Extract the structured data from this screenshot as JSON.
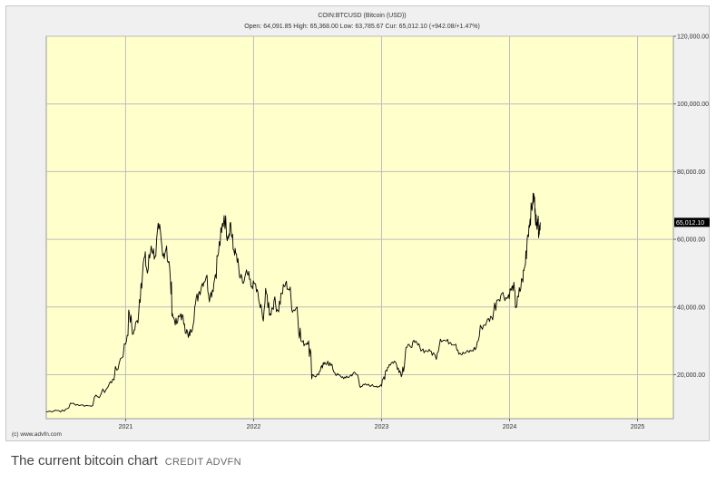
{
  "chart_data": {
    "type": "line",
    "title": "COIN:BTCUSD (Bitcoin (USD))",
    "subtitle": "Open: 64,091.85 High: 65,368.00 Low: 63,785.67 Cur: 65,012.10 (+942.08/+1.47%)",
    "x_tick_labels": [
      "2021",
      "2022",
      "2023",
      "2024",
      "2025"
    ],
    "x_ticks": [
      2021.0,
      2022.0,
      2023.0,
      2024.0,
      2025.0
    ],
    "y_tick_labels": [
      "20,000.00",
      "40,000.00",
      "60,000.00",
      "80,000.00",
      "100,000.00",
      "120,000.00"
    ],
    "y_ticks": [
      20000,
      40000,
      60000,
      80000,
      100000,
      120000
    ],
    "xlim": [
      2020.38,
      2025.28
    ],
    "ylim": [
      7000,
      120000
    ],
    "grid": true,
    "current_value_label": "65,012.10",
    "current_value": 65012.1,
    "watermark": "(c) www.advfn.com",
    "colors": {
      "plot_bg": "#ffffcc",
      "line": "#000000",
      "grid": "#bdbdbd",
      "frame_bg": "#f0f0f0"
    },
    "series": [
      {
        "points": [
          [
            2020.38,
            9000
          ],
          [
            2020.45,
            9500
          ],
          [
            2020.52,
            9200
          ],
          [
            2020.58,
            11500
          ],
          [
            2020.65,
            11000
          ],
          [
            2020.72,
            10800
          ],
          [
            2020.78,
            13500
          ],
          [
            2020.85,
            15800
          ],
          [
            2020.9,
            18700
          ],
          [
            2020.95,
            23500
          ],
          [
            2021.0,
            29000
          ],
          [
            2021.03,
            38000
          ],
          [
            2021.06,
            32000
          ],
          [
            2021.09,
            36000
          ],
          [
            2021.12,
            47000
          ],
          [
            2021.15,
            55000
          ],
          [
            2021.17,
            50000
          ],
          [
            2021.2,
            58000
          ],
          [
            2021.23,
            55000
          ],
          [
            2021.26,
            63000
          ],
          [
            2021.29,
            55000
          ],
          [
            2021.32,
            58000
          ],
          [
            2021.35,
            48000
          ],
          [
            2021.37,
            37000
          ],
          [
            2021.4,
            35000
          ],
          [
            2021.43,
            38000
          ],
          [
            2021.46,
            35000
          ],
          [
            2021.49,
            31000
          ],
          [
            2021.51,
            33000
          ],
          [
            2021.54,
            40000
          ],
          [
            2021.57,
            44000
          ],
          [
            2021.6,
            47000
          ],
          [
            2021.63,
            49000
          ],
          [
            2021.66,
            43000
          ],
          [
            2021.69,
            47000
          ],
          [
            2021.72,
            55000
          ],
          [
            2021.75,
            62000
          ],
          [
            2021.77,
            67000
          ],
          [
            2021.8,
            61000
          ],
          [
            2021.82,
            65000
          ],
          [
            2021.84,
            57000
          ],
          [
            2021.86,
            56000
          ],
          [
            2021.89,
            49000
          ],
          [
            2021.92,
            47000
          ],
          [
            2021.95,
            50000
          ],
          [
            2021.98,
            46000
          ],
          [
            2022.01,
            47000
          ],
          [
            2022.04,
            42000
          ],
          [
            2022.07,
            37000
          ],
          [
            2022.1,
            44000
          ],
          [
            2022.13,
            38000
          ],
          [
            2022.16,
            42000
          ],
          [
            2022.19,
            39000
          ],
          [
            2022.22,
            44000
          ],
          [
            2022.25,
            47000
          ],
          [
            2022.28,
            45000
          ],
          [
            2022.31,
            39000
          ],
          [
            2022.34,
            40000
          ],
          [
            2022.37,
            30000
          ],
          [
            2022.4,
            29000
          ],
          [
            2022.43,
            30000
          ],
          [
            2022.46,
            20000
          ],
          [
            2022.49,
            19500
          ],
          [
            2022.52,
            21000
          ],
          [
            2022.55,
            23000
          ],
          [
            2022.58,
            24000
          ],
          [
            2022.62,
            21500
          ],
          [
            2022.65,
            20000
          ],
          [
            2022.68,
            19500
          ],
          [
            2022.72,
            19000
          ],
          [
            2022.75,
            19500
          ],
          [
            2022.78,
            20500
          ],
          [
            2022.81,
            20000
          ],
          [
            2022.84,
            16500
          ],
          [
            2022.88,
            17000
          ],
          [
            2022.92,
            16800
          ],
          [
            2022.96,
            16600
          ],
          [
            2023.0,
            16600
          ],
          [
            2023.03,
            21000
          ],
          [
            2023.06,
            23000
          ],
          [
            2023.1,
            24000
          ],
          [
            2023.13,
            22000
          ],
          [
            2023.16,
            20000
          ],
          [
            2023.19,
            28000
          ],
          [
            2023.22,
            28500
          ],
          [
            2023.26,
            29500
          ],
          [
            2023.3,
            28000
          ],
          [
            2023.34,
            27000
          ],
          [
            2023.38,
            27000
          ],
          [
            2023.42,
            25500
          ],
          [
            2023.46,
            30500
          ],
          [
            2023.5,
            30000
          ],
          [
            2023.54,
            29500
          ],
          [
            2023.58,
            29000
          ],
          [
            2023.62,
            26000
          ],
          [
            2023.66,
            26500
          ],
          [
            2023.7,
            27000
          ],
          [
            2023.74,
            28000
          ],
          [
            2023.78,
            34000
          ],
          [
            2023.82,
            35500
          ],
          [
            2023.86,
            37000
          ],
          [
            2023.9,
            42000
          ],
          [
            2023.94,
            44000
          ],
          [
            2023.98,
            42500
          ],
          [
            2024.01,
            45000
          ],
          [
            2024.03,
            46000
          ],
          [
            2024.05,
            40000
          ],
          [
            2024.07,
            43000
          ],
          [
            2024.1,
            48000
          ],
          [
            2024.12,
            52000
          ],
          [
            2024.14,
            61000
          ],
          [
            2024.16,
            66000
          ],
          [
            2024.18,
            71000
          ],
          [
            2024.19,
            73000
          ],
          [
            2024.2,
            69000
          ],
          [
            2024.21,
            64000
          ],
          [
            2024.22,
            66000
          ],
          [
            2024.23,
            62000
          ],
          [
            2024.24,
            65000
          ]
        ]
      }
    ]
  },
  "caption": {
    "text": "The current bitcoin chart",
    "credit": "CREDIT ADVFN"
  }
}
